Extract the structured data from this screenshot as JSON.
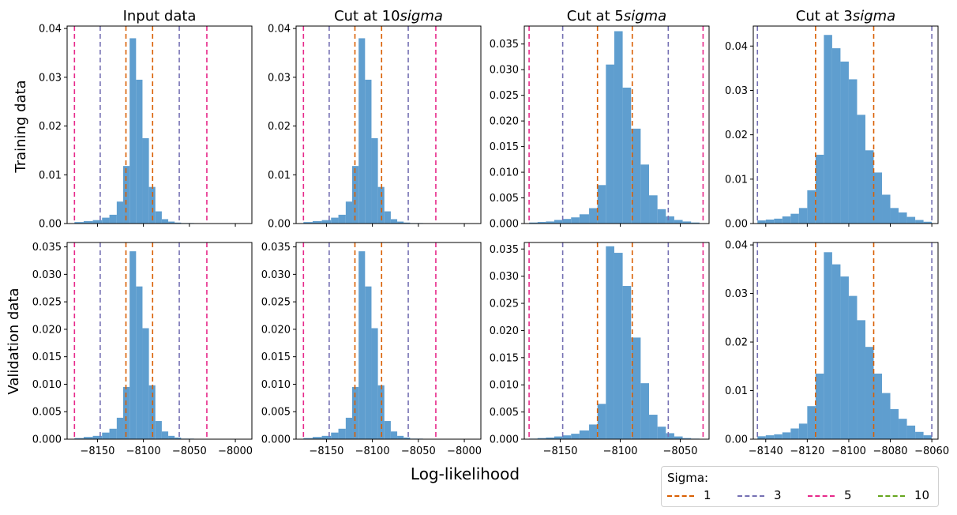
{
  "figure": {
    "row_labels": [
      "Training data",
      "Validation data"
    ],
    "col_titles": [
      {
        "prefix": "Input data",
        "italic": ""
      },
      {
        "prefix": "Cut at 10",
        "italic": "sigma"
      },
      {
        "prefix": "Cut at 5",
        "italic": "sigma"
      },
      {
        "prefix": "Cut at 3",
        "italic": "sigma"
      }
    ],
    "xlabel": "Log-likelihood",
    "hist_color": "#5f9ecf"
  },
  "legend": {
    "title": "Sigma:",
    "items": [
      {
        "label": "1",
        "color": "#d95f02"
      },
      {
        "label": "3",
        "color": "#7570b3"
      },
      {
        "label": "5",
        "color": "#e7298a"
      },
      {
        "label": "10",
        "color": "#66a61e"
      }
    ]
  },
  "chart_data": [
    {
      "type": "bar",
      "row": "Training data",
      "col": "Input data",
      "xlim": [
        -8183,
        -7982
      ],
      "ylim": [
        0,
        0.0405
      ],
      "xticks": [
        -8150,
        -8100,
        -8050,
        -8000
      ],
      "xtick_labels_shown": false,
      "yticks": [
        0,
        0.01,
        0.02,
        0.03,
        0.04
      ],
      "ytick_labels": [
        "0.00",
        "0.01",
        "0.02",
        "0.03",
        "0.04"
      ],
      "bin_edges": [
        -8175,
        -8165,
        -8155,
        -8145,
        -8137,
        -8129,
        -8122,
        -8115,
        -8108,
        -8101,
        -8094,
        -8087,
        -8080,
        -8073,
        -8066,
        -8059,
        -8052,
        -8045,
        -8038,
        -8031
      ],
      "values": [
        0.0003,
        0.0005,
        0.0007,
        0.0012,
        0.0018,
        0.0045,
        0.0118,
        0.038,
        0.0295,
        0.0175,
        0.0075,
        0.0025,
        0.0009,
        0.0004,
        0.0002,
        0.0001,
        0.0001,
        0.0,
        0.0
      ],
      "vlines": [
        {
          "sigma": "5",
          "x": [
            -8175,
            -8031
          ]
        },
        {
          "sigma": "3",
          "x": [
            -8147,
            -8061
          ]
        },
        {
          "sigma": "1",
          "x": [
            -8119,
            -8090
          ]
        }
      ]
    },
    {
      "type": "bar",
      "row": "Training data",
      "col": "Cut at 10sigma",
      "xlim": [
        -8183,
        -7982
      ],
      "ylim": [
        0,
        0.0405
      ],
      "xticks": [
        -8150,
        -8100,
        -8050,
        -8000
      ],
      "xtick_labels_shown": false,
      "yticks": [
        0,
        0.01,
        0.02,
        0.03,
        0.04
      ],
      "ytick_labels": [
        "0.00",
        "0.01",
        "0.02",
        "0.03",
        "0.04"
      ],
      "bin_edges": [
        -8175,
        -8165,
        -8155,
        -8145,
        -8137,
        -8129,
        -8122,
        -8115,
        -8108,
        -8101,
        -8094,
        -8087,
        -8080,
        -8073,
        -8066,
        -8059,
        -8052,
        -8045,
        -8038,
        -8031
      ],
      "values": [
        0.0003,
        0.0005,
        0.0007,
        0.0012,
        0.0018,
        0.0045,
        0.0118,
        0.038,
        0.0295,
        0.0175,
        0.0075,
        0.0025,
        0.0009,
        0.0004,
        0.0002,
        0.0001,
        0.0001,
        0.0,
        0.0
      ],
      "vlines": [
        {
          "sigma": "5",
          "x": [
            -8175,
            -8031
          ]
        },
        {
          "sigma": "3",
          "x": [
            -8147,
            -8061
          ]
        },
        {
          "sigma": "1",
          "x": [
            -8119,
            -8090
          ]
        }
      ]
    },
    {
      "type": "bar",
      "row": "Training data",
      "col": "Cut at 5sigma",
      "xlim": [
        -8180,
        -8026
      ],
      "ylim": [
        0,
        0.0385
      ],
      "xticks": [
        -8150,
        -8100,
        -8050
      ],
      "xtick_labels_shown": false,
      "yticks": [
        0,
        0.005,
        0.01,
        0.015,
        0.02,
        0.025,
        0.03,
        0.035
      ],
      "ytick_labels": [
        "0.000",
        "0.005",
        "0.010",
        "0.015",
        "0.020",
        "0.025",
        "0.030",
        "0.035"
      ],
      "bin_edges": [
        -8176,
        -8169,
        -8162,
        -8155,
        -8148,
        -8141,
        -8134,
        -8126,
        -8119,
        -8112,
        -8105,
        -8098,
        -8091,
        -8083,
        -8076,
        -8069,
        -8062,
        -8055,
        -8048,
        -8041,
        -8034
      ],
      "values": [
        0.0002,
        0.0003,
        0.0004,
        0.0007,
        0.0009,
        0.0012,
        0.0018,
        0.003,
        0.0075,
        0.031,
        0.0375,
        0.0265,
        0.0185,
        0.0115,
        0.0055,
        0.0028,
        0.0014,
        0.0007,
        0.0004,
        0.0002
      ],
      "vlines": [
        {
          "sigma": "5",
          "x": [
            -8176,
            -8031
          ]
        },
        {
          "sigma": "3",
          "x": [
            -8148,
            -8060
          ]
        },
        {
          "sigma": "1",
          "x": [
            -8119,
            -8090
          ]
        }
      ]
    },
    {
      "type": "bar",
      "row": "Training data",
      "col": "Cut at 3sigma",
      "xlim": [
        -8146,
        -8057
      ],
      "ylim": [
        0,
        0.0445
      ],
      "xticks": [
        -8140,
        -8120,
        -8100,
        -8080,
        -8060
      ],
      "xtick_labels_shown": false,
      "yticks": [
        0,
        0.01,
        0.02,
        0.03,
        0.04
      ],
      "ytick_labels": [
        "0.00",
        "0.01",
        "0.02",
        "0.03",
        "0.04"
      ],
      "bin_edges": [
        -8144,
        -8140,
        -8136,
        -8132,
        -8128,
        -8124,
        -8120,
        -8116,
        -8112,
        -8108,
        -8104,
        -8100,
        -8096,
        -8092,
        -8088,
        -8084,
        -8080,
        -8076,
        -8072,
        -8068,
        -8064,
        -8060
      ],
      "values": [
        0.0007,
        0.0009,
        0.0011,
        0.0016,
        0.0022,
        0.0035,
        0.0075,
        0.0155,
        0.0425,
        0.0395,
        0.0365,
        0.0325,
        0.0245,
        0.0165,
        0.0115,
        0.0065,
        0.0035,
        0.0025,
        0.0015,
        0.0008,
        0.0004
      ],
      "vlines": [
        {
          "sigma": "3",
          "x": [
            -8144,
            -8060
          ]
        },
        {
          "sigma": "1",
          "x": [
            -8116,
            -8088
          ]
        }
      ]
    },
    {
      "type": "bar",
      "row": "Validation data",
      "col": "Input data",
      "xlim": [
        -8183,
        -7982
      ],
      "ylim": [
        0,
        0.0358
      ],
      "xticks": [
        -8150,
        -8100,
        -8050,
        -8000
      ],
      "xtick_labels": [
        "−8150",
        "−8100",
        "−8050",
        "−8000"
      ],
      "yticks": [
        0,
        0.005,
        0.01,
        0.015,
        0.02,
        0.025,
        0.03,
        0.035
      ],
      "ytick_labels": [
        "0.000",
        "0.005",
        "0.010",
        "0.015",
        "0.020",
        "0.025",
        "0.030",
        "0.035"
      ],
      "bin_edges": [
        -8175,
        -8165,
        -8155,
        -8145,
        -8137,
        -8129,
        -8122,
        -8115,
        -8108,
        -8101,
        -8094,
        -8087,
        -8080,
        -8073,
        -8066,
        -8059,
        -8052,
        -8045,
        -8038,
        -8031
      ],
      "values": [
        0.0002,
        0.0004,
        0.0006,
        0.0012,
        0.0019,
        0.0039,
        0.0095,
        0.0342,
        0.0278,
        0.0202,
        0.0098,
        0.0033,
        0.0014,
        0.0006,
        0.0003,
        0.0001,
        0.0001,
        0.0,
        0.0
      ],
      "vlines": [
        {
          "sigma": "5",
          "x": [
            -8175,
            -8031
          ]
        },
        {
          "sigma": "3",
          "x": [
            -8147,
            -8061
          ]
        },
        {
          "sigma": "1",
          "x": [
            -8119,
            -8090
          ]
        }
      ]
    },
    {
      "type": "bar",
      "row": "Validation data",
      "col": "Cut at 10sigma",
      "xlim": [
        -8183,
        -7982
      ],
      "ylim": [
        0,
        0.0358
      ],
      "xticks": [
        -8150,
        -8100,
        -8050,
        -8000
      ],
      "xtick_labels": [
        "−8150",
        "−8100",
        "−8050",
        "−8000"
      ],
      "yticks": [
        0,
        0.005,
        0.01,
        0.015,
        0.02,
        0.025,
        0.03,
        0.035
      ],
      "ytick_labels": [
        "0.000",
        "0.005",
        "0.010",
        "0.015",
        "0.020",
        "0.025",
        "0.030",
        "0.035"
      ],
      "bin_edges": [
        -8175,
        -8165,
        -8155,
        -8145,
        -8137,
        -8129,
        -8122,
        -8115,
        -8108,
        -8101,
        -8094,
        -8087,
        -8080,
        -8073,
        -8066,
        -8059,
        -8052,
        -8045,
        -8038,
        -8031
      ],
      "values": [
        0.0002,
        0.0004,
        0.0006,
        0.0012,
        0.0019,
        0.0039,
        0.0095,
        0.0342,
        0.0278,
        0.0202,
        0.0098,
        0.0033,
        0.0014,
        0.0006,
        0.0003,
        0.0001,
        0.0001,
        0.0,
        0.0
      ],
      "vlines": [
        {
          "sigma": "5",
          "x": [
            -8175,
            -8031
          ]
        },
        {
          "sigma": "3",
          "x": [
            -8147,
            -8061
          ]
        },
        {
          "sigma": "1",
          "x": [
            -8119,
            -8090
          ]
        }
      ]
    },
    {
      "type": "bar",
      "row": "Validation data",
      "col": "Cut at 5sigma",
      "xlim": [
        -8180,
        -8026
      ],
      "ylim": [
        0,
        0.0362
      ],
      "xticks": [
        -8150,
        -8100,
        -8050
      ],
      "xtick_labels": [
        "−8150",
        "−8100",
        "−8050"
      ],
      "yticks": [
        0,
        0.005,
        0.01,
        0.015,
        0.02,
        0.025,
        0.03,
        0.035
      ],
      "ytick_labels": [
        "0.000",
        "0.005",
        "0.010",
        "0.015",
        "0.020",
        "0.025",
        "0.030",
        "0.035"
      ],
      "bin_edges": [
        -8176,
        -8169,
        -8162,
        -8155,
        -8148,
        -8141,
        -8134,
        -8126,
        -8119,
        -8112,
        -8105,
        -8098,
        -8091,
        -8083,
        -8076,
        -8069,
        -8062,
        -8055,
        -8048,
        -8041,
        -8034
      ],
      "values": [
        0.0001,
        0.0002,
        0.0003,
        0.0005,
        0.0007,
        0.001,
        0.0016,
        0.0027,
        0.0065,
        0.0355,
        0.0343,
        0.0282,
        0.0187,
        0.0103,
        0.0045,
        0.0023,
        0.0011,
        0.0005,
        0.0002,
        0.0001
      ],
      "vlines": [
        {
          "sigma": "5",
          "x": [
            -8176,
            -8031
          ]
        },
        {
          "sigma": "3",
          "x": [
            -8148,
            -8060
          ]
        },
        {
          "sigma": "1",
          "x": [
            -8119,
            -8090
          ]
        }
      ]
    },
    {
      "type": "bar",
      "row": "Validation data",
      "col": "Cut at 3sigma",
      "xlim": [
        -8146,
        -8057
      ],
      "ylim": [
        0,
        0.0405
      ],
      "xticks": [
        -8140,
        -8120,
        -8100,
        -8080,
        -8060
      ],
      "xtick_labels": [
        "−8140",
        "−8120",
        "−8100",
        "−8080",
        "−8060"
      ],
      "yticks": [
        0,
        0.01,
        0.02,
        0.03,
        0.04
      ],
      "ytick_labels": [
        "0.00",
        "0.01",
        "0.02",
        "0.03",
        "0.04"
      ],
      "bin_edges": [
        -8144,
        -8140,
        -8136,
        -8132,
        -8128,
        -8124,
        -8120,
        -8116,
        -8112,
        -8108,
        -8104,
        -8100,
        -8096,
        -8092,
        -8088,
        -8084,
        -8080,
        -8076,
        -8072,
        -8068,
        -8064,
        -8060
      ],
      "values": [
        0.0006,
        0.0008,
        0.001,
        0.0014,
        0.0022,
        0.0032,
        0.0068,
        0.0135,
        0.0385,
        0.036,
        0.0335,
        0.0295,
        0.0245,
        0.019,
        0.0135,
        0.0095,
        0.0062,
        0.0042,
        0.0028,
        0.0015,
        0.0008
      ],
      "vlines": [
        {
          "sigma": "3",
          "x": [
            -8144,
            -8060
          ]
        },
        {
          "sigma": "1",
          "x": [
            -8116,
            -8088
          ]
        }
      ]
    }
  ]
}
